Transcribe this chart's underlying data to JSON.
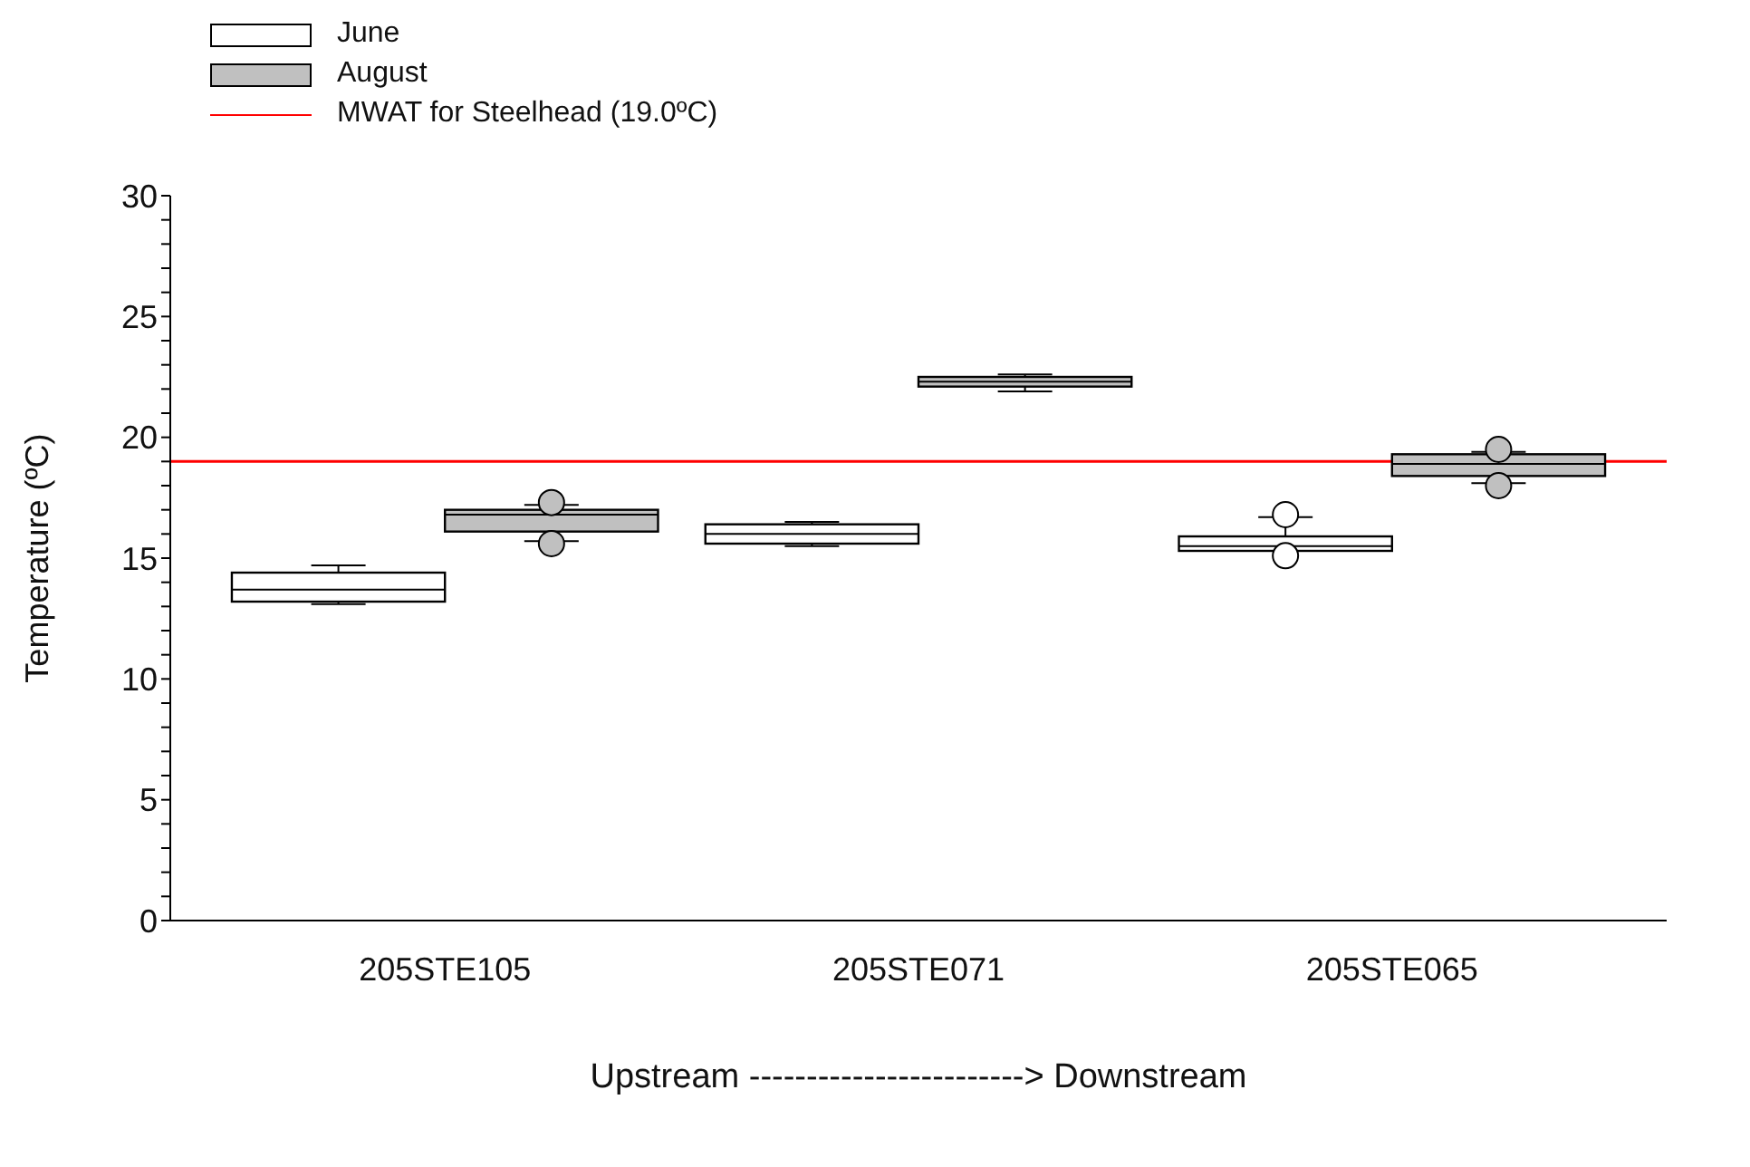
{
  "chart_data": {
    "type": "box",
    "xlabel": "Upstream ------------------------> Downstream",
    "ylabel": "Temperature (ºC)",
    "categories": [
      "205STE105",
      "205STE071",
      "205STE065"
    ],
    "ylim": [
      0,
      30
    ],
    "yticks": [
      0,
      {
        "value": 1,
        "label": null
      },
      {
        "value": 2,
        "label": null
      },
      {
        "value": 3,
        "label": null
      },
      {
        "value": 4,
        "label": null
      },
      5,
      {
        "value": 6,
        "label": null
      },
      {
        "value": 7,
        "label": null
      },
      {
        "value": 8,
        "label": null
      },
      {
        "value": 9,
        "label": null
      },
      10,
      {
        "value": 11,
        "label": null
      },
      {
        "value": 12,
        "label": null
      },
      {
        "value": 13,
        "label": null
      },
      {
        "value": 14,
        "label": null
      },
      15,
      {
        "value": 16,
        "label": null
      },
      {
        "value": 17,
        "label": null
      },
      {
        "value": 18,
        "label": null
      },
      {
        "value": 19,
        "label": null
      },
      20,
      {
        "value": 21,
        "label": null
      },
      {
        "value": 22,
        "label": null
      },
      {
        "value": 23,
        "label": null
      },
      {
        "value": 24,
        "label": null
      },
      25,
      {
        "value": 26,
        "label": null
      },
      {
        "value": 27,
        "label": null
      },
      {
        "value": 28,
        "label": null
      },
      {
        "value": 29,
        "label": null
      },
      30
    ],
    "legend": "top left",
    "series": [
      {
        "name": "June",
        "color": "#ffffff",
        "boxes": [
          {
            "low": 13.1,
            "q1": 13.2,
            "median": 13.7,
            "q3": 14.4,
            "high": 14.7
          },
          {
            "low": 15.5,
            "q1": 15.6,
            "median": 16.0,
            "q3": 16.4,
            "high": 16.5
          },
          {
            "low": 15.3,
            "q1": 15.3,
            "median": 15.5,
            "q3": 15.9,
            "high": 16.7,
            "outliers": [
              16.8,
              15.1
            ]
          }
        ]
      },
      {
        "name": "August",
        "color": "#c0c0c0",
        "boxes": [
          {
            "low": 15.7,
            "q1": 16.1,
            "median": 16.8,
            "q3": 17.0,
            "high": 17.2,
            "outliers": [
              17.3,
              15.6
            ]
          },
          {
            "low": 21.9,
            "q1": 22.1,
            "median": 22.3,
            "q3": 22.5,
            "high": 22.6
          },
          {
            "low": 18.1,
            "q1": 18.4,
            "median": 18.9,
            "q3": 19.3,
            "high": 19.4,
            "outliers": [
              19.5,
              18.0
            ]
          }
        ]
      }
    ],
    "ref_lines": [
      {
        "axis": "y",
        "value": 19.0,
        "label": "MWAT for Steelhead (19.0ºC)",
        "color": "#ff0000"
      }
    ]
  }
}
